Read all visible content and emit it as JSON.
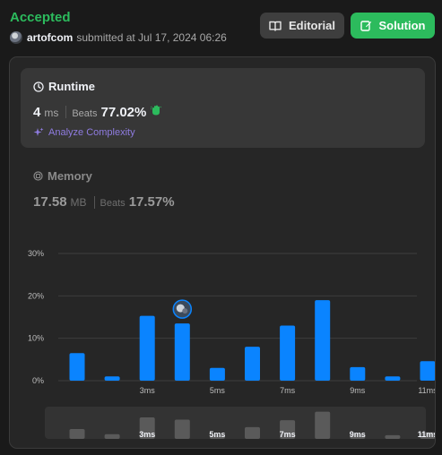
{
  "submission": {
    "status": "Accepted",
    "username": "artofcom",
    "submitted_text": "submitted at Jul 17, 2024 06:26"
  },
  "buttons": {
    "editorial_label": "Editorial",
    "solution_label": "Solution"
  },
  "runtime": {
    "title": "Runtime",
    "value": "4",
    "unit": "ms",
    "beats_label": "Beats",
    "beats_value": "77.02%",
    "analyze_label": "Analyze Complexity"
  },
  "memory": {
    "title": "Memory",
    "value": "17.58",
    "unit": "MB",
    "beats_label": "Beats",
    "beats_value": "17.57%"
  },
  "colors": {
    "accepted": "#2cbb5d",
    "bar": "#0a84ff",
    "analyze": "#8f7ce0"
  },
  "chart_data": {
    "type": "bar",
    "y_ticks": [
      "30%",
      "20%",
      "10%",
      "0%"
    ],
    "ylim": [
      0,
      30
    ],
    "x_tick_labels": [
      {
        "index": 2,
        "label": "3ms"
      },
      {
        "index": 4,
        "label": "5ms"
      },
      {
        "index": 6,
        "label": "7ms"
      },
      {
        "index": 8,
        "label": "9ms"
      },
      {
        "index": 10,
        "label": "11ms"
      }
    ],
    "values": [
      6.5,
      1.0,
      15.3,
      13.5,
      3.0,
      8.0,
      13.0,
      19.0,
      3.2,
      1.0,
      4.6
    ],
    "highlight_index": 3,
    "navigator_values": [
      2.1,
      1.0,
      4.6,
      4.1,
      0.8,
      2.5,
      4.0,
      5.8,
      1.0,
      0.8,
      1.4
    ],
    "navigator_labels": [
      {
        "index": 2,
        "label": "3ms"
      },
      {
        "index": 4,
        "label": "5ms"
      },
      {
        "index": 6,
        "label": "7ms"
      },
      {
        "index": 8,
        "label": "9ms"
      },
      {
        "index": 10,
        "label": "11ms"
      }
    ]
  }
}
